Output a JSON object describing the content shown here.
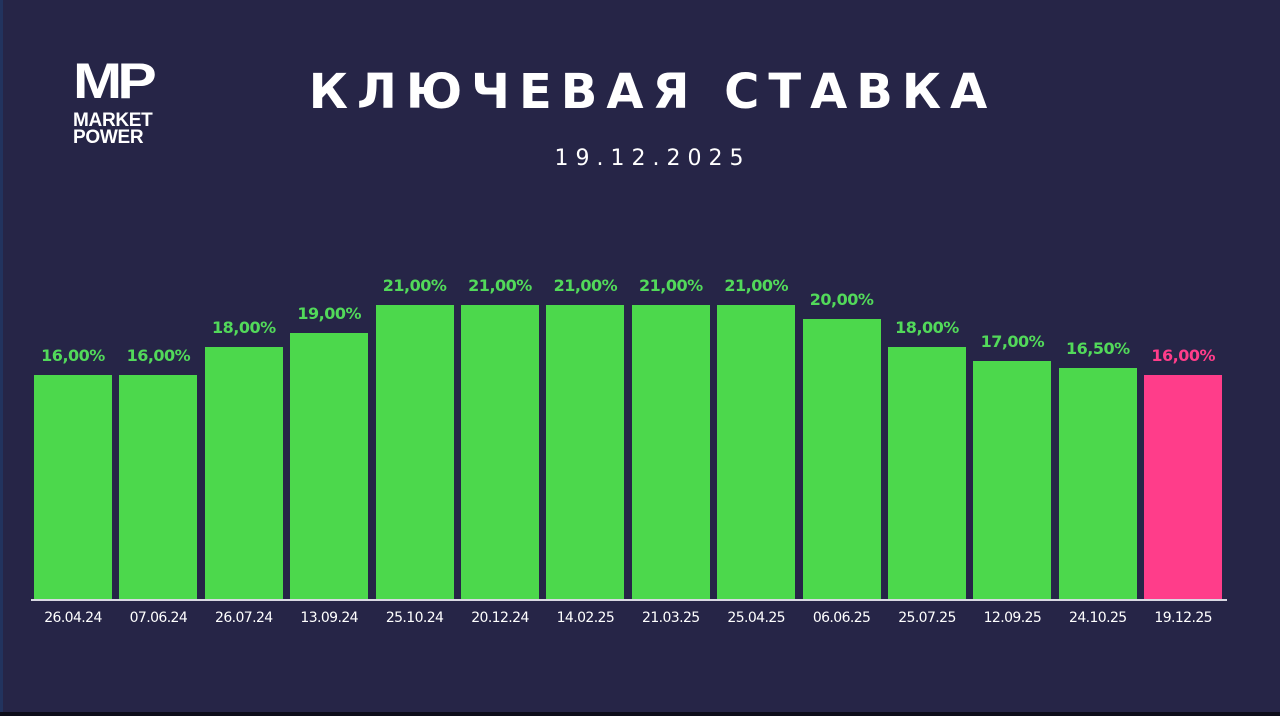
{
  "logo": {
    "mark": "MP",
    "line1": "MARKET",
    "line2": "POWER"
  },
  "header": {
    "title": "КЛЮЧЕВАЯ СТАВКА",
    "subtitle": "19.12.2025"
  },
  "colors": {
    "background": "#262547",
    "bar": "#4cd84c",
    "highlight": "#ff3d8a",
    "label": "#52d95a",
    "axis_text": "#ffffff"
  },
  "chart_data": {
    "type": "bar",
    "title": "КЛЮЧЕВАЯ СТАВКА",
    "subtitle": "19.12.2025",
    "xlabel": "",
    "ylabel": "",
    "categories": [
      "26.04.24",
      "07.06.24",
      "26.07.24",
      "13.09.24",
      "25.10.24",
      "20.12.24",
      "14.02.25",
      "21.03.25",
      "25.04.25",
      "06.06.25",
      "25.07.25",
      "12.09.25",
      "24.10.25",
      "19.12.25"
    ],
    "values": [
      16.0,
      16.0,
      18.0,
      19.0,
      21.0,
      21.0,
      21.0,
      21.0,
      21.0,
      20.0,
      18.0,
      17.0,
      16.5,
      16.0
    ],
    "value_labels": [
      "16,00%",
      "16,00%",
      "18,00%",
      "19,00%",
      "21,00%",
      "21,00%",
      "21,00%",
      "21,00%",
      "21,00%",
      "20,00%",
      "18,00%",
      "17,00%",
      "16,50%",
      "16,00%"
    ],
    "highlight_index": 13,
    "ylim": [
      0,
      21
    ],
    "grid": false,
    "legend": null
  }
}
